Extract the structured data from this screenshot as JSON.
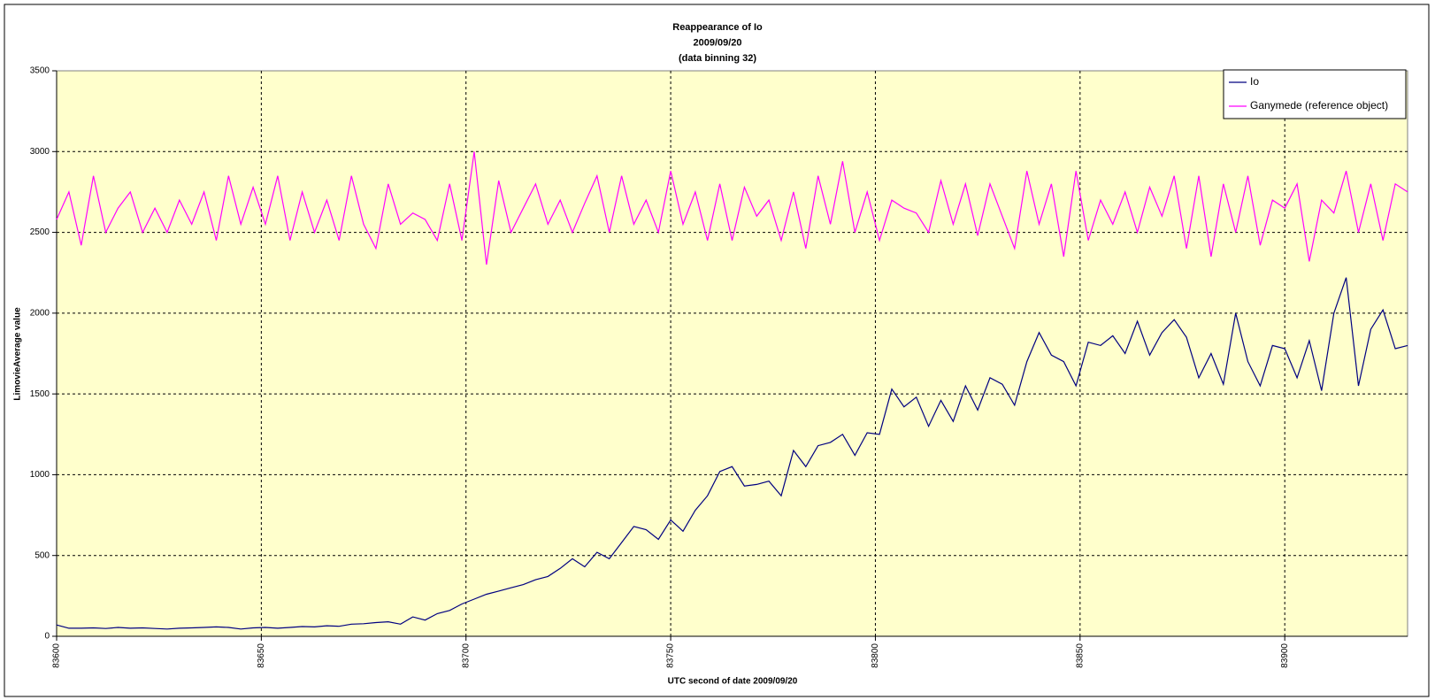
{
  "chart_data": {
    "type": "line",
    "title": [
      "Reappearance of Io",
      "2009/09/20",
      "(data binning 32)"
    ],
    "x_label": "UTC second of date 2009/09/20",
    "y_label": "LimovieAverage value",
    "x": [
      83600,
      83603,
      83606,
      83609,
      83612,
      83615,
      83618,
      83621,
      83624,
      83627,
      83630,
      83633,
      83636,
      83639,
      83642,
      83645,
      83648,
      83651,
      83654,
      83657,
      83660,
      83663,
      83666,
      83669,
      83672,
      83675,
      83678,
      83681,
      83684,
      83687,
      83690,
      83693,
      83696,
      83699,
      83702,
      83705,
      83708,
      83711,
      83714,
      83717,
      83720,
      83723,
      83726,
      83729,
      83732,
      83735,
      83738,
      83741,
      83744,
      83747,
      83750,
      83753,
      83756,
      83759,
      83762,
      83765,
      83768,
      83771,
      83774,
      83777,
      83780,
      83783,
      83786,
      83789,
      83792,
      83795,
      83798,
      83801,
      83804,
      83807,
      83810,
      83813,
      83816,
      83819,
      83822,
      83825,
      83828,
      83831,
      83834,
      83837,
      83840,
      83843,
      83846,
      83849,
      83852,
      83855,
      83858,
      83861,
      83864,
      83867,
      83870,
      83873,
      83876,
      83879,
      83882,
      83885,
      83888,
      83891,
      83894,
      83897,
      83900,
      83903,
      83906,
      83909,
      83912,
      83915,
      83918,
      83921,
      83924,
      83927,
      83930
    ],
    "series": [
      {
        "name": "Io",
        "color": "#000080",
        "values": [
          70,
          50,
          50,
          52,
          48,
          55,
          50,
          52,
          48,
          45,
          50,
          52,
          55,
          58,
          55,
          45,
          52,
          55,
          50,
          55,
          60,
          58,
          65,
          62,
          75,
          78,
          85,
          90,
          75,
          120,
          100,
          140,
          160,
          200,
          230,
          260,
          280,
          300,
          320,
          350,
          370,
          420,
          480,
          430,
          520,
          480,
          580,
          680,
          660,
          600,
          720,
          650,
          780,
          870,
          1020,
          1050,
          930,
          940,
          960,
          870,
          1150,
          1050,
          1180,
          1200,
          1250,
          1120,
          1260,
          1250,
          1530,
          1420,
          1480,
          1300,
          1460,
          1330,
          1550,
          1400,
          1600,
          1560,
          1430,
          1700,
          1880,
          1740,
          1700,
          1550,
          1820,
          1800,
          1860,
          1750,
          1950,
          1740,
          1880,
          1960,
          1850,
          1600,
          1750,
          1560,
          2000,
          1700,
          1550,
          1800,
          1780,
          1600,
          1830,
          1520,
          2000,
          2220,
          1550,
          1900,
          2020,
          1780,
          1800
        ]
      },
      {
        "name": "Ganymede (reference object)",
        "color": "#ff00ff",
        "values": [
          2580,
          2750,
          2420,
          2850,
          2500,
          2650,
          2750,
          2500,
          2650,
          2500,
          2700,
          2550,
          2750,
          2450,
          2850,
          2550,
          2780,
          2550,
          2850,
          2450,
          2750,
          2500,
          2700,
          2450,
          2850,
          2550,
          2400,
          2800,
          2550,
          2620,
          2580,
          2450,
          2800,
          2450,
          3000,
          2300,
          2820,
          2500,
          2650,
          2800,
          2550,
          2700,
          2500,
          2680,
          2850,
          2500,
          2850,
          2550,
          2700,
          2500,
          2880,
          2550,
          2750,
          2450,
          2800,
          2450,
          2780,
          2600,
          2700,
          2450,
          2750,
          2400,
          2850,
          2550,
          2940,
          2500,
          2750,
          2450,
          2700,
          2650,
          2620,
          2500,
          2820,
          2550,
          2800,
          2480,
          2800,
          2600,
          2400,
          2880,
          2550,
          2800,
          2350,
          2880,
          2450,
          2700,
          2550,
          2750,
          2500,
          2780,
          2600,
          2850,
          2400,
          2850,
          2350,
          2800,
          2500,
          2850,
          2420,
          2700,
          2650,
          2800,
          2320,
          2700,
          2620,
          2880,
          2500,
          2800,
          2450,
          2800,
          2750
        ]
      }
    ],
    "xlim": [
      83600,
      83930
    ],
    "xticks": [
      83600,
      83650,
      83700,
      83750,
      83800,
      83850,
      83900
    ],
    "ylim": [
      0,
      3500
    ],
    "yticks": [
      0,
      500,
      1000,
      1500,
      2000,
      2500,
      3000,
      3500
    ],
    "grid": true,
    "legend": "top-right",
    "background": "#ffffcc"
  }
}
